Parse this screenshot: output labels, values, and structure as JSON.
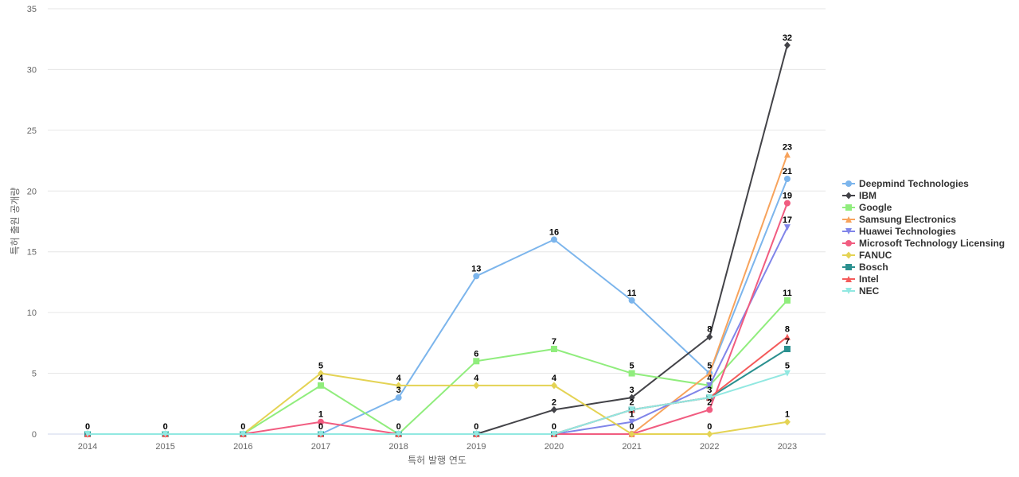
{
  "chart_data": {
    "type": "line",
    "title": "",
    "xlabel": "특허 발행 연도",
    "ylabel": "특허 출원 공개량",
    "categories": [
      "2014",
      "2015",
      "2016",
      "2017",
      "2018",
      "2019",
      "2020",
      "2021",
      "2022",
      "2023"
    ],
    "ylim": [
      0,
      35
    ],
    "yticks": [
      0,
      5,
      10,
      15,
      20,
      25,
      30,
      35
    ],
    "grid": true,
    "legend_position": "right",
    "series": [
      {
        "name": "Deepmind Technologies",
        "color": "#7cb5ec",
        "marker": "circle",
        "values": [
          0,
          0,
          0,
          0,
          3,
          13,
          16,
          11,
          5,
          21
        ]
      },
      {
        "name": "IBM",
        "color": "#434348",
        "marker": "diamond",
        "values": [
          0,
          0,
          0,
          0,
          0,
          0,
          2,
          3,
          8,
          32
        ]
      },
      {
        "name": "Google",
        "color": "#90ed7d",
        "marker": "square",
        "values": [
          0,
          0,
          0,
          4,
          0,
          6,
          7,
          5,
          4,
          11
        ]
      },
      {
        "name": "Samsung Electronics",
        "color": "#f7a35c",
        "marker": "triangle",
        "values": [
          0,
          0,
          0,
          0,
          0,
          0,
          0,
          0,
          5,
          23
        ]
      },
      {
        "name": "Huawei Technologies",
        "color": "#8085e9",
        "marker": "triangle-down",
        "values": [
          0,
          0,
          0,
          0,
          0,
          0,
          0,
          1,
          4,
          17
        ]
      },
      {
        "name": "Microsoft Technology Licensing",
        "color": "#f15c80",
        "marker": "circle",
        "values": [
          0,
          0,
          0,
          1,
          0,
          0,
          0,
          0,
          2,
          19
        ]
      },
      {
        "name": "FANUC",
        "color": "#e4d354",
        "marker": "diamond",
        "values": [
          0,
          0,
          0,
          5,
          4,
          4,
          4,
          0,
          0,
          1
        ]
      },
      {
        "name": "Bosch",
        "color": "#2b908f",
        "marker": "square",
        "values": [
          0,
          0,
          0,
          0,
          0,
          0,
          0,
          2,
          3,
          7
        ]
      },
      {
        "name": "Intel",
        "color": "#f45b5b",
        "marker": "triangle",
        "values": [
          0,
          0,
          0,
          0,
          0,
          0,
          0,
          2,
          3,
          8
        ]
      },
      {
        "name": "NEC",
        "color": "#91e8e1",
        "marker": "triangle-down",
        "values": [
          0,
          0,
          0,
          0,
          0,
          0,
          0,
          2,
          3,
          5
        ]
      }
    ],
    "data_labels": [
      {
        "category": "2014",
        "value": 0,
        "text": "0"
      },
      {
        "category": "2015",
        "value": 0,
        "text": "0"
      },
      {
        "category": "2016",
        "value": 0,
        "text": "0"
      },
      {
        "category": "2017",
        "value": 5,
        "text": "5"
      },
      {
        "category": "2017",
        "value": 4,
        "text": "4"
      },
      {
        "category": "2017",
        "value": 1,
        "text": "1"
      },
      {
        "category": "2017",
        "value": 0,
        "text": "0"
      },
      {
        "category": "2018",
        "value": 4,
        "text": "4"
      },
      {
        "category": "2018",
        "value": 3,
        "text": "3"
      },
      {
        "category": "2018",
        "value": 0,
        "text": "0"
      },
      {
        "category": "2019",
        "value": 13,
        "text": "13"
      },
      {
        "category": "2019",
        "value": 6,
        "text": "6"
      },
      {
        "category": "2019",
        "value": 4,
        "text": "4"
      },
      {
        "category": "2019",
        "value": 0,
        "text": "0"
      },
      {
        "category": "2020",
        "value": 16,
        "text": "16"
      },
      {
        "category": "2020",
        "value": 7,
        "text": "7"
      },
      {
        "category": "2020",
        "value": 4,
        "text": "4"
      },
      {
        "category": "2020",
        "value": 2,
        "text": "2"
      },
      {
        "category": "2020",
        "value": 0,
        "text": "0"
      },
      {
        "category": "2021",
        "value": 11,
        "text": "11"
      },
      {
        "category": "2021",
        "value": 5,
        "text": "5"
      },
      {
        "category": "2021",
        "value": 3,
        "text": "3"
      },
      {
        "category": "2021",
        "value": 2,
        "text": "2"
      },
      {
        "category": "2021",
        "value": 1,
        "text": "1"
      },
      {
        "category": "2021",
        "value": 0,
        "text": "0"
      },
      {
        "category": "2022",
        "value": 8,
        "text": "8"
      },
      {
        "category": "2022",
        "value": 5,
        "text": "5"
      },
      {
        "category": "2022",
        "value": 4,
        "text": "4"
      },
      {
        "category": "2022",
        "value": 3,
        "text": "3"
      },
      {
        "category": "2022",
        "value": 2,
        "text": "2"
      },
      {
        "category": "2022",
        "value": 0,
        "text": "0"
      },
      {
        "category": "2023",
        "value": 32,
        "text": "32"
      },
      {
        "category": "2023",
        "value": 23,
        "text": "23"
      },
      {
        "category": "2023",
        "value": 21,
        "text": "21"
      },
      {
        "category": "2023",
        "value": 19,
        "text": "19"
      },
      {
        "category": "2023",
        "value": 17,
        "text": "17"
      },
      {
        "category": "2023",
        "value": 11,
        "text": "11"
      },
      {
        "category": "2023",
        "value": 8,
        "text": "8"
      },
      {
        "category": "2023",
        "value": 7,
        "text": "7"
      },
      {
        "category": "2023",
        "value": 5,
        "text": "5"
      },
      {
        "category": "2023",
        "value": 1,
        "text": "1"
      }
    ]
  }
}
